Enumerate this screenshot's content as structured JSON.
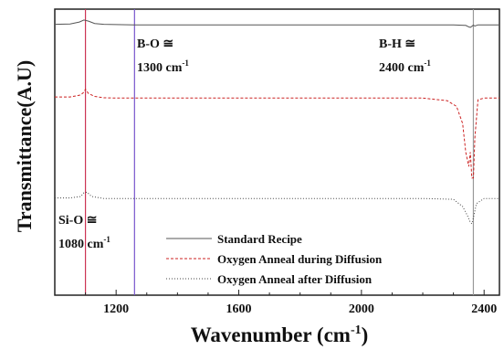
{
  "chart_data": {
    "type": "line",
    "xlabel": "Wavenumber (cm",
    "xlabel_sup": "-1",
    "xlabel_close": ")",
    "ylabel": "Transmittance(A.U)",
    "xlim": [
      1000,
      2450
    ],
    "ylim": [
      0,
      1
    ],
    "xticks": [
      1200,
      1600,
      2000,
      2400
    ],
    "yticks": [],
    "grid": false,
    "legend_position": "bottom-center",
    "series": [
      {
        "name": "Standard Recipe",
        "color": "#555555",
        "dash": "",
        "x": [
          1000,
          1050,
          1080,
          1095,
          1110,
          1130,
          1160,
          1200,
          1260,
          1400,
          1800,
          2200,
          2300,
          2340,
          2350,
          2355,
          2360,
          2365,
          2370,
          2380,
          2400,
          2450
        ],
        "y": [
          0.947,
          0.948,
          0.955,
          0.962,
          0.958,
          0.95,
          0.947,
          0.946,
          0.945,
          0.945,
          0.945,
          0.945,
          0.945,
          0.943,
          0.938,
          0.936,
          0.94,
          0.944,
          0.941,
          0.945,
          0.945,
          0.945
        ]
      },
      {
        "name": "Oxygen Anneal during Diffusion",
        "color": "#cc2222",
        "dash": "3,2",
        "x": [
          1000,
          1050,
          1085,
          1095,
          1100,
          1110,
          1130,
          1160,
          1200,
          1300,
          1600,
          2000,
          2200,
          2280,
          2310,
          2330,
          2340,
          2350,
          2355,
          2360,
          2365,
          2370,
          2380,
          2400,
          2450
        ],
        "y": [
          0.693,
          0.693,
          0.7,
          0.71,
          0.72,
          0.705,
          0.695,
          0.69,
          0.689,
          0.689,
          0.689,
          0.689,
          0.689,
          0.68,
          0.66,
          0.6,
          0.5,
          0.45,
          0.5,
          0.41,
          0.41,
          0.55,
          0.683,
          0.689,
          0.689
        ]
      },
      {
        "name": "Oxygen Anneal after Diffusion",
        "color": "#444444",
        "dash": "1,2",
        "x": [
          1000,
          1050,
          1085,
          1095,
          1105,
          1120,
          1160,
          1200,
          1300,
          1600,
          2000,
          2200,
          2300,
          2330,
          2345,
          2355,
          2360,
          2365,
          2375,
          2400,
          2450
        ],
        "y": [
          0.34,
          0.34,
          0.345,
          0.358,
          0.36,
          0.345,
          0.338,
          0.338,
          0.338,
          0.338,
          0.338,
          0.338,
          0.335,
          0.31,
          0.28,
          0.255,
          0.25,
          0.27,
          0.32,
          0.338,
          0.338
        ]
      }
    ],
    "reference_lines": [
      {
        "x": 1100,
        "color": "#cc3355"
      },
      {
        "x": 1260,
        "color": "#7755cc"
      },
      {
        "x": 2365,
        "color": "#999999"
      }
    ],
    "annotations": [
      {
        "line1": "B-O ≅",
        "line2": "1300 cm",
        "sup": "-1"
      },
      {
        "line1": "B-H ≅",
        "line2": "2400 cm",
        "sup": "-1"
      },
      {
        "line1": "Si-O ≅",
        "line2": "1080 cm",
        "sup": "-1"
      }
    ]
  }
}
